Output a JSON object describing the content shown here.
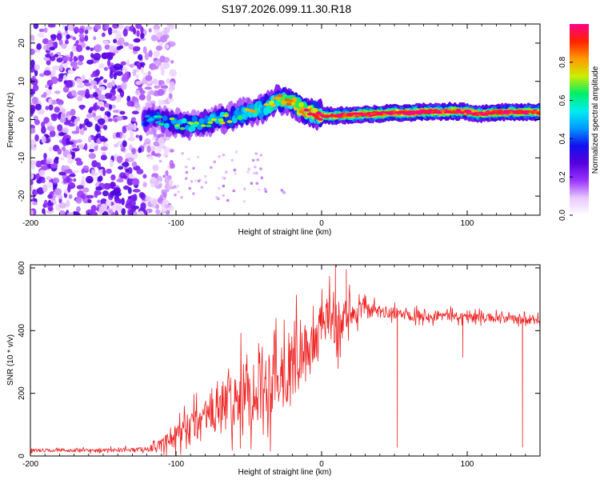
{
  "title": "S197.2026.099.11.30.R18",
  "chart_data": [
    {
      "type": "heatmap",
      "id": "spectrogram",
      "title": "S197.2026.099.11.30.R18",
      "xlabel": "Height of straight line (km)",
      "ylabel": "Frequency (Hz)",
      "xlim": [
        -200,
        150
      ],
      "ylim": [
        -25,
        25
      ],
      "x_ticks": [
        -200,
        -100,
        0,
        100
      ],
      "x_tick_labels": [
        "-200",
        "-100",
        "0",
        "100"
      ],
      "y_ticks": [
        -20,
        -10,
        0,
        10,
        20
      ],
      "y_tick_labels": [
        "-20",
        "-10",
        "0",
        "10",
        "20"
      ],
      "colorbar": {
        "label": "Normalized spectral amplitude",
        "range": [
          0.0,
          1.0
        ],
        "ticks": [
          0.0,
          0.2,
          0.4,
          0.6,
          0.8
        ],
        "tick_labels": [
          "0.0",
          "0.2",
          "0.4",
          "0.6",
          "0.8"
        ],
        "colors": [
          "#ffffff",
          "#e8c8ff",
          "#9933ff",
          "#5500dd",
          "#1111ee",
          "#0099ff",
          "#00eeee",
          "#00ee66",
          "#ccee00",
          "#ff9900",
          "#ff2200",
          "#ff0088"
        ]
      },
      "ridge": {
        "x": [
          -120,
          -110,
          -100,
          -90,
          -80,
          -70,
          -60,
          -50,
          -40,
          -30,
          -25,
          -20,
          -15,
          -10,
          -5,
          0,
          10,
          20,
          30,
          40,
          50,
          60,
          70,
          80,
          90,
          100,
          110,
          120,
          130,
          140,
          150
        ],
        "y": [
          0,
          0,
          -1,
          -1.5,
          -0.5,
          0,
          1,
          2,
          3,
          5,
          5.5,
          4.5,
          3,
          2,
          1.5,
          1,
          1,
          1.2,
          1.5,
          1.5,
          1.8,
          1.8,
          2,
          2,
          2.2,
          2,
          1.5,
          1.8,
          2,
          2,
          2
        ],
        "amplitude": [
          0.15,
          0.2,
          0.3,
          0.3,
          0.35,
          0.35,
          0.4,
          0.45,
          0.5,
          0.55,
          0.6,
          0.6,
          0.65,
          0.7,
          0.75,
          0.8,
          0.85,
          0.9,
          0.95,
          0.95,
          0.95,
          0.95,
          0.95,
          0.95,
          0.95,
          0.95,
          0.9,
          0.95,
          0.95,
          0.95,
          0.95
        ]
      },
      "noise_region": {
        "x_from": -200,
        "x_to": -110,
        "amplitude_range": [
          0.05,
          0.3
        ]
      }
    },
    {
      "type": "line",
      "id": "snr",
      "xlabel": "Height of straight line (km)",
      "ylabel": "SNR (10 * v/v)",
      "xlim": [
        -200,
        150
      ],
      "ylim": [
        0,
        610
      ],
      "x_ticks": [
        -200,
        -100,
        0,
        100
      ],
      "x_tick_labels": [
        "-200",
        "-100",
        "0",
        "100"
      ],
      "y_ticks": [
        0,
        200,
        400,
        600
      ],
      "y_tick_labels": [
        "0",
        "200",
        "400",
        "600"
      ],
      "color": "#ee2222",
      "envelope": {
        "x": [
          -200,
          -150,
          -120,
          -110,
          -100,
          -90,
          -80,
          -70,
          -60,
          -50,
          -40,
          -30,
          -20,
          -10,
          -5,
          0,
          5,
          10,
          15,
          20,
          30,
          50,
          70,
          100,
          120,
          150
        ],
        "mean": [
          18,
          18,
          22,
          35,
          60,
          90,
          120,
          150,
          180,
          200,
          230,
          260,
          290,
          330,
          360,
          420,
          440,
          410,
          440,
          460,
          465,
          455,
          450,
          445,
          440,
          430
        ],
        "spread": [
          8,
          8,
          10,
          25,
          55,
          80,
          100,
          120,
          140,
          150,
          160,
          170,
          160,
          130,
          120,
          90,
          100,
          110,
          90,
          70,
          35,
          25,
          25,
          20,
          20,
          20
        ]
      },
      "spikes": [
        {
          "x": 9.5,
          "y": 610
        },
        {
          "x": 17,
          "y": 595
        },
        {
          "x": 52,
          "y": 28
        },
        {
          "x": 97,
          "y": 315
        },
        {
          "x": 138,
          "y": 28
        }
      ]
    }
  ]
}
